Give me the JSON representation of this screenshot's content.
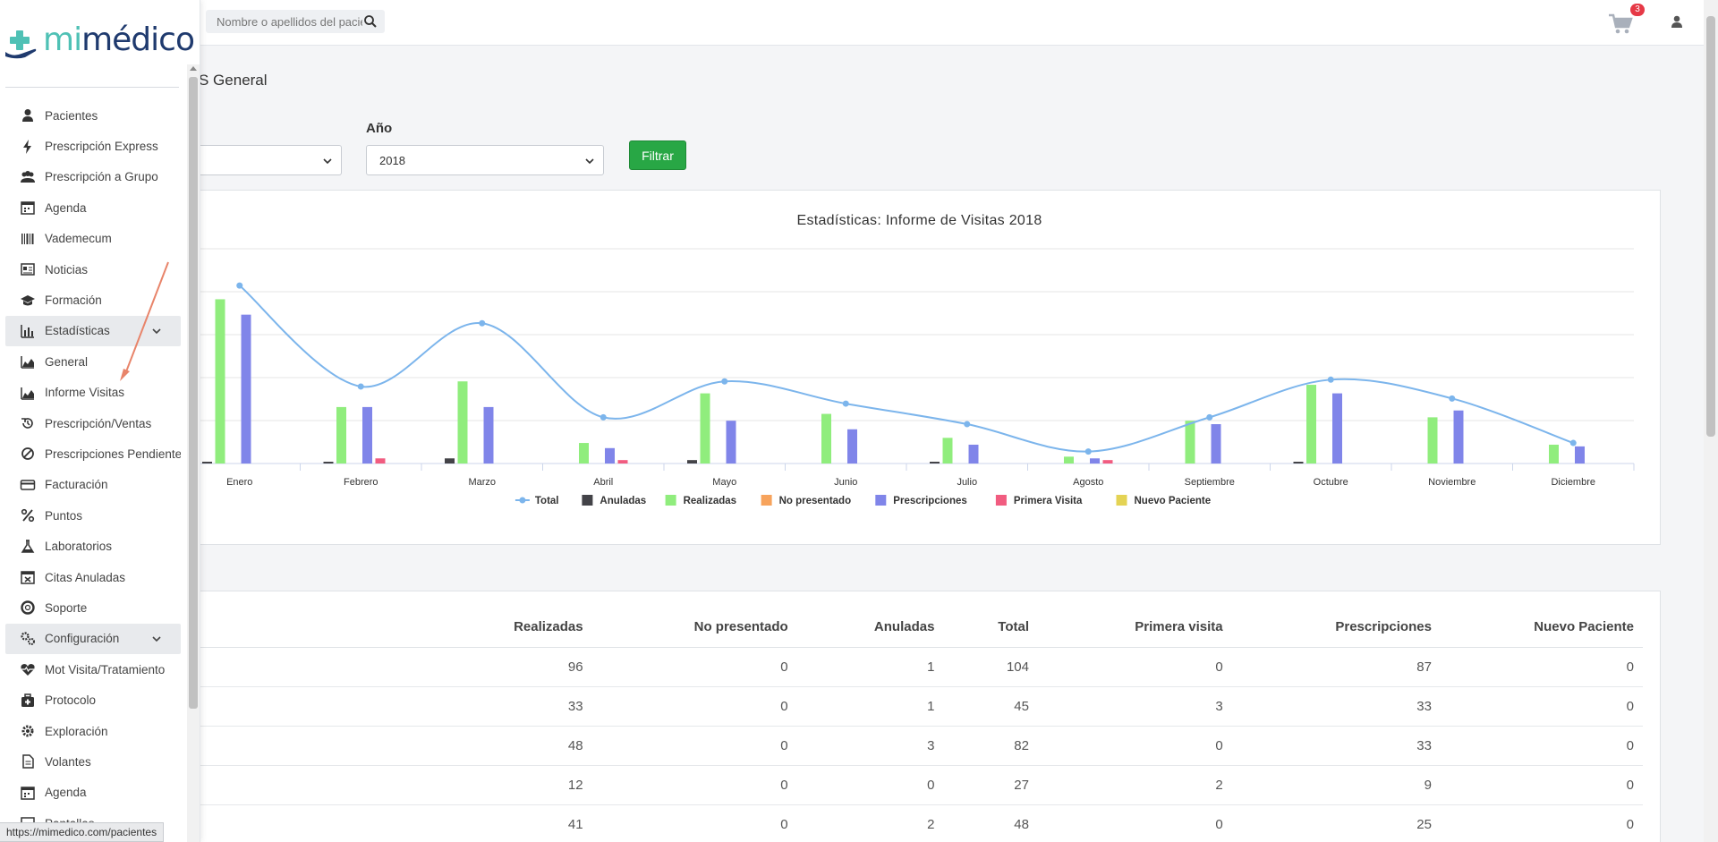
{
  "header": {
    "search_placeholder": "Nombre o apellidos del paciente",
    "cart_count": "3"
  },
  "sidebar": {
    "logo_mi": "mi",
    "logo_medico": "médico",
    "items": [
      {
        "label": "Pacientes",
        "icon": "user-icon"
      },
      {
        "label": "Prescripción Express",
        "icon": "bolt-icon"
      },
      {
        "label": "Prescripción a Grupo",
        "icon": "users-icon"
      },
      {
        "label": "Agenda",
        "icon": "calendar-icon"
      },
      {
        "label": "Vademecum",
        "icon": "barcode-icon"
      },
      {
        "label": "Noticias",
        "icon": "newspaper-icon"
      },
      {
        "label": "Formación",
        "icon": "graduation-cap-icon"
      },
      {
        "label": "Estadísticas",
        "icon": "bar-chart-icon",
        "section": true
      },
      {
        "label": "General",
        "icon": "area-chart-icon"
      },
      {
        "label": "Informe Visitas",
        "icon": "area-chart-icon"
      },
      {
        "label": "Prescripción/Ventas",
        "icon": "history-icon"
      },
      {
        "label": "Prescripciones Pendientes",
        "icon": "ban-icon"
      },
      {
        "label": "Facturación",
        "icon": "credit-card-icon"
      },
      {
        "label": "Puntos",
        "icon": "percent-icon"
      },
      {
        "label": "Laboratorios",
        "icon": "flask-icon"
      },
      {
        "label": "Citas Anuladas",
        "icon": "calendar-x-icon"
      },
      {
        "label": "Soporte",
        "icon": "life-ring-icon"
      },
      {
        "label": "Configuración",
        "icon": "cogs-icon",
        "section": true
      },
      {
        "label": "Mot Visita/Tratamiento",
        "icon": "heartbeat-icon"
      },
      {
        "label": "Protocolo",
        "icon": "briefcase-medical-icon"
      },
      {
        "label": "Exploración",
        "icon": "gear-icon"
      },
      {
        "label": "Volantes",
        "icon": "file-icon"
      },
      {
        "label": "Agenda",
        "icon": "calendar-icon"
      },
      {
        "label": "Pantallas",
        "icon": "desktop-icon"
      }
    ],
    "status_url": "https://mimedico.com/pacientes"
  },
  "main": {
    "page_title": "S General",
    "year_label": "Año",
    "year_value": "2018",
    "filter_label": "Filtrar"
  },
  "chart_data": {
    "type": "bar",
    "title": "Estadísticas: Informe de Visitas 2018",
    "categories": [
      "Enero",
      "Febrero",
      "Marzo",
      "Abril",
      "Mayo",
      "Junio",
      "Julio",
      "Agosto",
      "Septiembre",
      "Octubre",
      "Noviembre",
      "Diciembre"
    ],
    "series": [
      {
        "name": "Total",
        "kind": "line",
        "color": "#7cb5ec",
        "values": [
          104,
          45,
          82,
          27,
          48,
          35,
          23,
          7,
          27,
          49,
          38,
          12
        ]
      },
      {
        "name": "Anuladas",
        "color": "#434348",
        "values": [
          1,
          1,
          3,
          0,
          2,
          0,
          1,
          0,
          0,
          1,
          0,
          0
        ]
      },
      {
        "name": "Realizadas",
        "color": "#90ed7d",
        "values": [
          96,
          33,
          48,
          12,
          41,
          29,
          15,
          4,
          25,
          46,
          27,
          11
        ]
      },
      {
        "name": "No presentado",
        "color": "#f7a35c",
        "values": [
          0,
          0,
          0,
          0,
          0,
          0,
          0,
          0,
          0,
          0,
          0,
          0
        ]
      },
      {
        "name": "Prescripciones",
        "color": "#8085e9",
        "values": [
          87,
          33,
          33,
          9,
          25,
          20,
          11,
          3,
          23,
          41,
          31,
          10
        ]
      },
      {
        "name": "Primera Visita",
        "color": "#f15c80",
        "values": [
          0,
          3,
          0,
          2,
          0,
          0,
          0,
          2,
          0,
          0,
          0,
          0
        ]
      },
      {
        "name": "Nuevo Paciente",
        "color": "#e4d354",
        "values": [
          0,
          0,
          0,
          0,
          0,
          0,
          0,
          0,
          0,
          0,
          0,
          0
        ]
      }
    ],
    "ylim": [
      0,
      125
    ],
    "grid": true,
    "legend": "bottom-center"
  },
  "table": {
    "columns": [
      "Realizadas",
      "No presentado",
      "Anuladas",
      "Total",
      "Primera visita",
      "Prescripciones",
      "Nuevo Paciente"
    ],
    "rows": [
      [
        "96",
        "0",
        "1",
        "104",
        "0",
        "87",
        "0"
      ],
      [
        "33",
        "0",
        "1",
        "45",
        "3",
        "33",
        "0"
      ],
      [
        "48",
        "0",
        "3",
        "82",
        "0",
        "33",
        "0"
      ],
      [
        "12",
        "0",
        "0",
        "27",
        "2",
        "9",
        "0"
      ],
      [
        "41",
        "0",
        "2",
        "48",
        "0",
        "25",
        "0"
      ]
    ]
  }
}
